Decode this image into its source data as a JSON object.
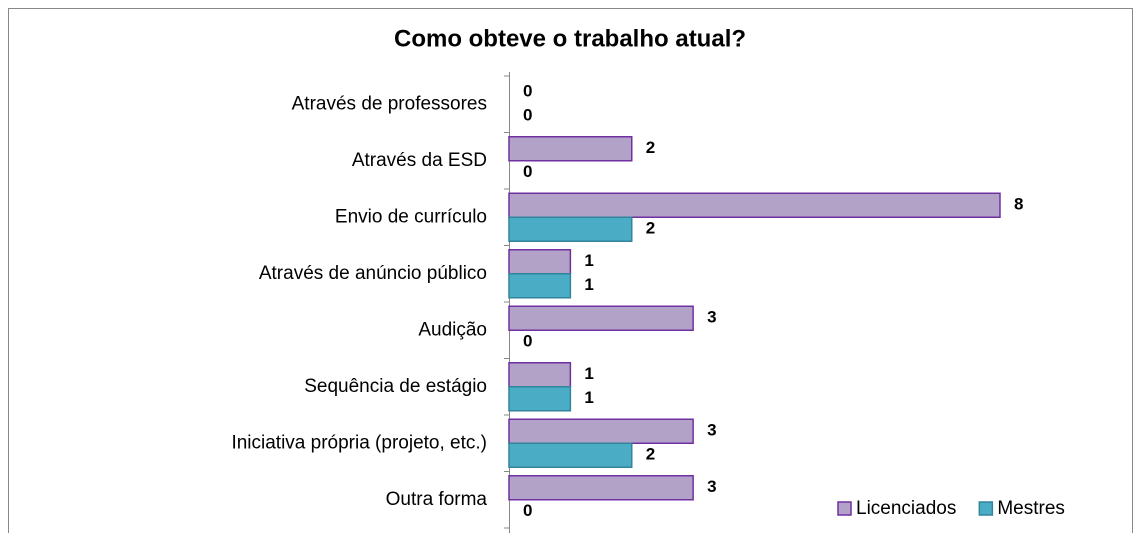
{
  "chart_data": {
    "type": "bar",
    "orientation": "horizontal",
    "title": "Como obteve o trabalho atual?",
    "categories": [
      "Através de professores",
      "Através da ESD",
      "Envio de currículo",
      "Através de anúncio público",
      "Audição",
      "Sequência de estágio",
      "Iniciativa própria (projeto, etc.)",
      "Outra forma"
    ],
    "series": [
      {
        "name": "Licenciados",
        "color": "#b3a2c7",
        "edge": "#7030a0",
        "values": [
          0,
          2,
          8,
          1,
          3,
          1,
          3,
          3
        ]
      },
      {
        "name": "Mestres",
        "color": "#4bacc6",
        "edge": "#31849b",
        "values": [
          0,
          0,
          2,
          1,
          0,
          1,
          2,
          0
        ]
      }
    ],
    "xlim": [
      0,
      8
    ],
    "legend": "lower right"
  }
}
